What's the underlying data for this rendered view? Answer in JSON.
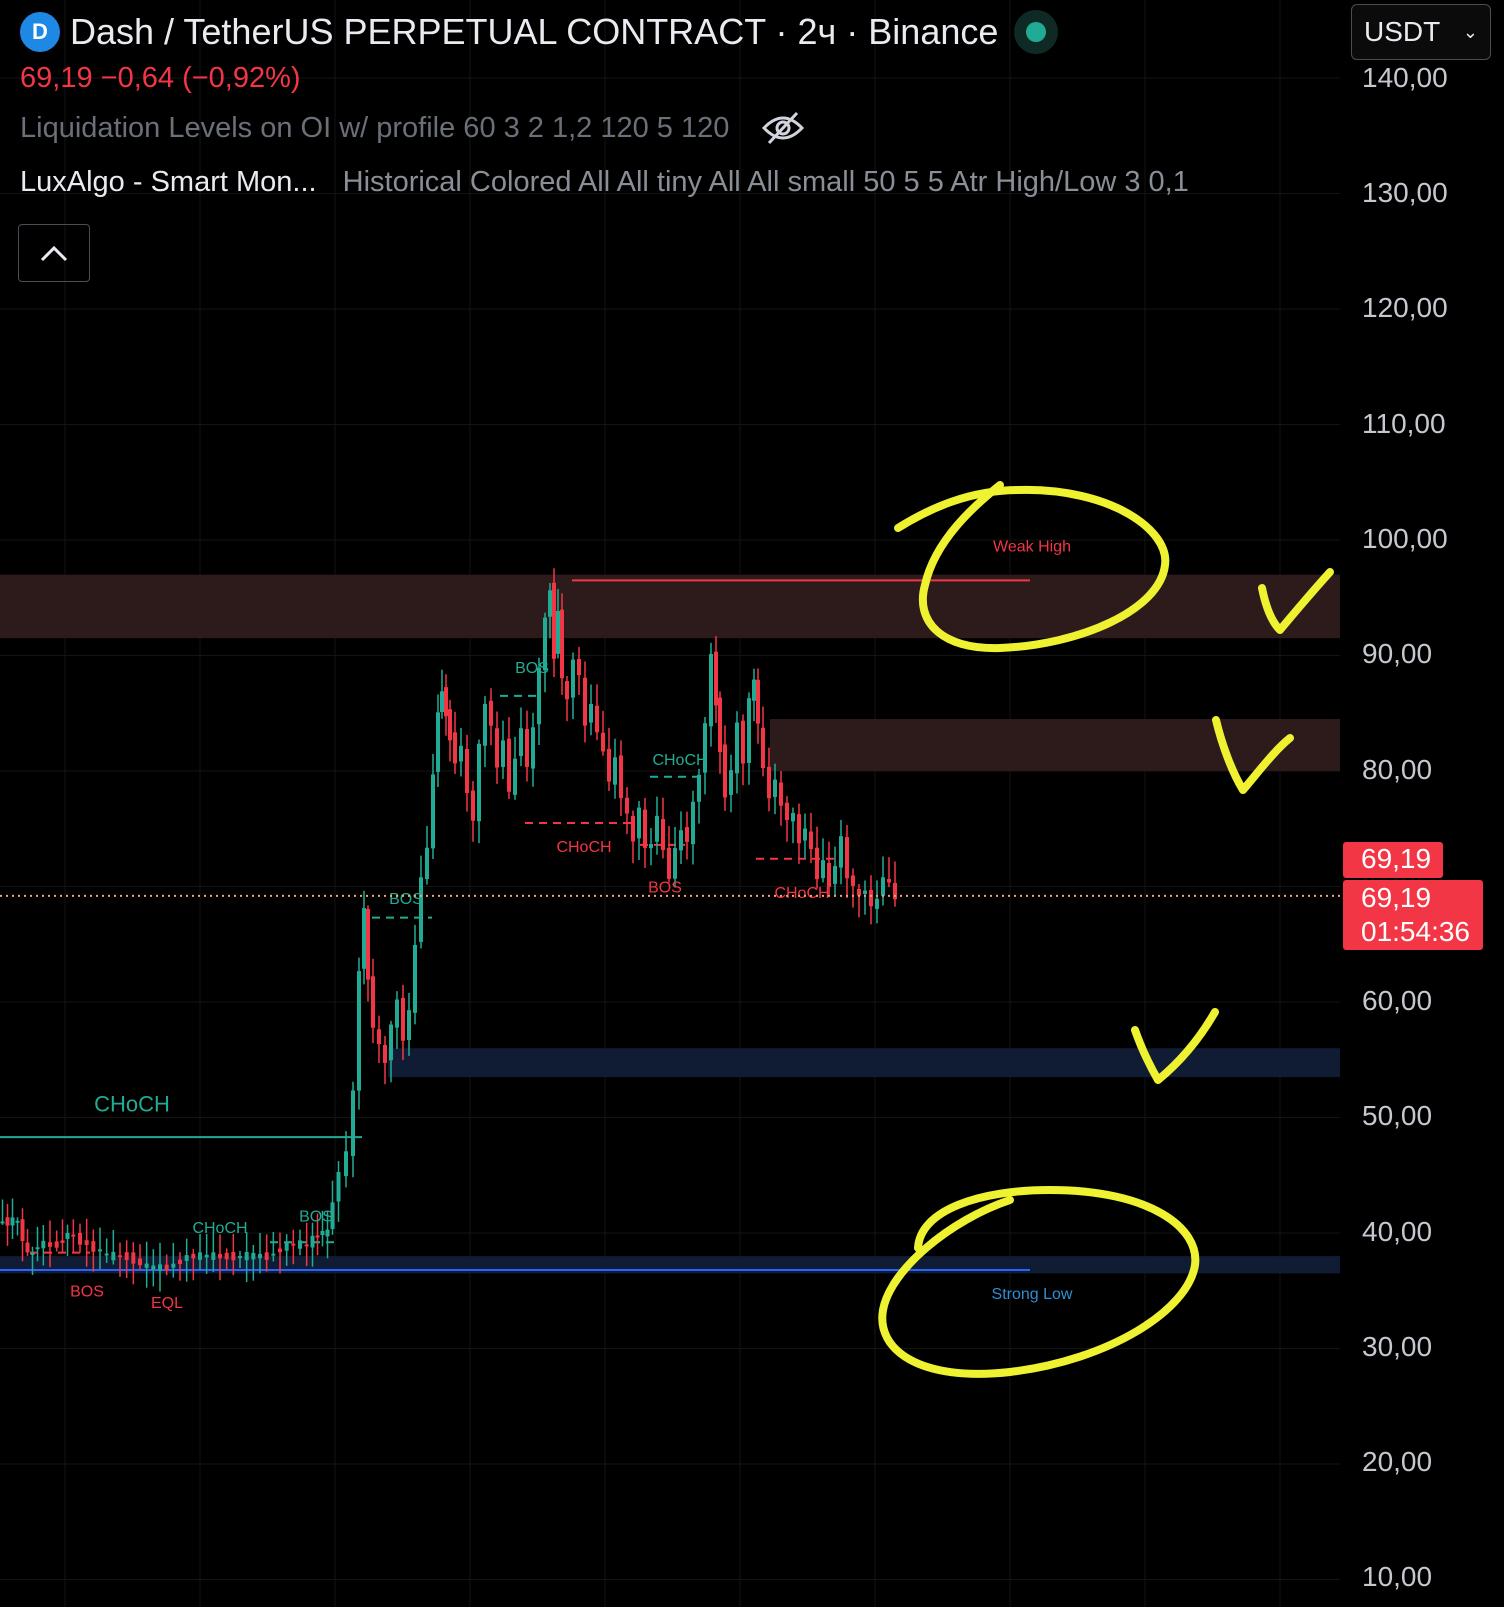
{
  "header": {
    "logo_glyph": "D",
    "title": "Dash / TetherUS PERPETUAL CONTRACT · 2ч · Binance",
    "price_change": "69,19  −0,64 (−0,92%)",
    "currency": "USDT",
    "status_color": "#22ab94"
  },
  "indicators": {
    "liquidation": "Liquidation Levels on OI w/ profile 60 3 2 1,2 120 5 120",
    "luxalgo_name": "LuxAlgo - Smart Mon...",
    "luxalgo_params": "Historical Colored All All tiny All All small 50 5 5 Atr High/Low 3 0,1"
  },
  "price_axis": {
    "ticks": [
      "140,00",
      "130,00",
      "120,00",
      "110,00",
      "100,00",
      "90,00",
      "80,00",
      "69,19",
      "69,19",
      "01:54:36",
      "60,00",
      "50,00",
      "40,00",
      "30,00",
      "20,00",
      "10,00"
    ]
  },
  "current_price": {
    "value": "69,19",
    "value_repeat": "69,19",
    "countdown": "01:54:36",
    "color": "#f23645"
  },
  "colors": {
    "up": "#22ab94",
    "down": "#f23645",
    "bear_zone": "#2d1b1c",
    "bull_zone": "#101c33",
    "annotation": "#eef230"
  },
  "chart_data": {
    "type": "candlestick",
    "title": "Dash / TetherUS PERPETUAL CONTRACT · 2ч · Binance",
    "ylim": [
      8,
      144
    ],
    "y_ticks": [
      140,
      130,
      120,
      110,
      100,
      90,
      80,
      60,
      50,
      40,
      30,
      20,
      10
    ],
    "price_path": [
      [
        0,
        41
      ],
      [
        10,
        41
      ],
      [
        20,
        41
      ],
      [
        30,
        38
      ],
      [
        40,
        39
      ],
      [
        60,
        39
      ],
      [
        70,
        40
      ],
      [
        90,
        39
      ],
      [
        110,
        38
      ],
      [
        130,
        38
      ],
      [
        150,
        37
      ],
      [
        170,
        37
      ],
      [
        190,
        38
      ],
      [
        210,
        38
      ],
      [
        230,
        38
      ],
      [
        250,
        38
      ],
      [
        270,
        38
      ],
      [
        290,
        39
      ],
      [
        310,
        39
      ],
      [
        320,
        40
      ],
      [
        330,
        40
      ],
      [
        335,
        43
      ],
      [
        342,
        45
      ],
      [
        350,
        47
      ],
      [
        356,
        52
      ],
      [
        362,
        63
      ],
      [
        366,
        68
      ],
      [
        370,
        62
      ],
      [
        376,
        58
      ],
      [
        382,
        56
      ],
      [
        388,
        55
      ],
      [
        394,
        58
      ],
      [
        400,
        60
      ],
      [
        406,
        57
      ],
      [
        412,
        59
      ],
      [
        418,
        65
      ],
      [
        424,
        71
      ],
      [
        430,
        73
      ],
      [
        436,
        80
      ],
      [
        440,
        85
      ],
      [
        444,
        87
      ],
      [
        448,
        85
      ],
      [
        452,
        83
      ],
      [
        458,
        81
      ],
      [
        464,
        82
      ],
      [
        470,
        78
      ],
      [
        476,
        76
      ],
      [
        482,
        82
      ],
      [
        488,
        86
      ],
      [
        494,
        84
      ],
      [
        500,
        80
      ],
      [
        506,
        83
      ],
      [
        512,
        78
      ],
      [
        518,
        81
      ],
      [
        524,
        84
      ],
      [
        530,
        80
      ],
      [
        536,
        84
      ],
      [
        542,
        89
      ],
      [
        548,
        93
      ],
      [
        552,
        96
      ],
      [
        556,
        90
      ],
      [
        560,
        94
      ],
      [
        564,
        88
      ],
      [
        570,
        86
      ],
      [
        576,
        90
      ],
      [
        582,
        88
      ],
      [
        588,
        84
      ],
      [
        594,
        86
      ],
      [
        600,
        83
      ],
      [
        606,
        82
      ],
      [
        612,
        79
      ],
      [
        618,
        81
      ],
      [
        624,
        78
      ],
      [
        630,
        76
      ],
      [
        636,
        74
      ],
      [
        642,
        77
      ],
      [
        648,
        73
      ],
      [
        654,
        74
      ],
      [
        660,
        76
      ],
      [
        666,
        73
      ],
      [
        672,
        71
      ],
      [
        678,
        73
      ],
      [
        684,
        75
      ],
      [
        690,
        74
      ],
      [
        696,
        77
      ],
      [
        702,
        80
      ],
      [
        708,
        84
      ],
      [
        714,
        90
      ],
      [
        718,
        86
      ],
      [
        722,
        82
      ],
      [
        728,
        78
      ],
      [
        734,
        80
      ],
      [
        740,
        84
      ],
      [
        746,
        81
      ],
      [
        752,
        86
      ],
      [
        756,
        88
      ],
      [
        760,
        84
      ],
      [
        766,
        80
      ],
      [
        772,
        78
      ],
      [
        778,
        79
      ],
      [
        784,
        77
      ],
      [
        790,
        76
      ],
      [
        796,
        76
      ],
      [
        802,
        74
      ],
      [
        808,
        75
      ],
      [
        814,
        73
      ],
      [
        820,
        71
      ],
      [
        826,
        72
      ],
      [
        832,
        70
      ],
      [
        838,
        72
      ],
      [
        844,
        74
      ],
      [
        850,
        71
      ],
      [
        856,
        70
      ],
      [
        862,
        69
      ],
      [
        868,
        70
      ],
      [
        874,
        68
      ],
      [
        880,
        69
      ],
      [
        886,
        71
      ],
      [
        892,
        70
      ],
      [
        898,
        69.19
      ]
    ],
    "zones": [
      {
        "type": "bearish",
        "top": 97,
        "bottom": 91.5
      },
      {
        "type": "bearish",
        "top": 84.5,
        "bottom": 80
      },
      {
        "type": "bullish",
        "top": 56,
        "bottom": 53.5
      },
      {
        "type": "bullish",
        "top": 38,
        "bottom": 36.5
      }
    ],
    "weak_high": {
      "label": "Weak High",
      "price": 96.5
    },
    "strong_low": {
      "label": "Strong Low",
      "price": 36.8
    },
    "current_price": 69.19,
    "structure_labels": [
      {
        "text": "CHoCH",
        "price": 50.5,
        "color": "up",
        "size": "large"
      },
      {
        "text": "CHoCH",
        "price": 40,
        "color": "up"
      },
      {
        "text": "BOS",
        "price": 41,
        "color": "up"
      },
      {
        "text": "BOS",
        "price": 34.5,
        "color": "down"
      },
      {
        "text": "EQL",
        "price": 33.5,
        "color": "down"
      },
      {
        "text": "BOS",
        "price": 68.5,
        "color": "up"
      },
      {
        "text": "BOS",
        "price": 88.5,
        "color": "up"
      },
      {
        "text": "CHoCH",
        "price": 73,
        "color": "down"
      },
      {
        "text": "BOS",
        "price": 69.5,
        "color": "down"
      },
      {
        "text": "CHoCH",
        "price": 80.5,
        "color": "up"
      },
      {
        "text": "CHoCH",
        "price": 69,
        "color": "down"
      }
    ]
  }
}
